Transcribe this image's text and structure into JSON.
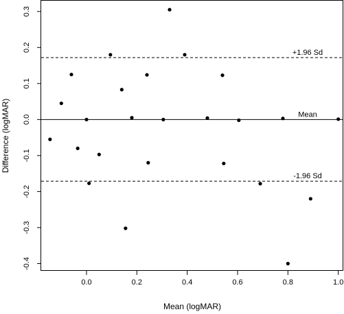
{
  "chart_data": {
    "type": "scatter",
    "title": "",
    "xlabel": "Mean (logMAR)",
    "ylabel": "Difference (logMAR)",
    "xlim": [
      -0.18,
      1.02
    ],
    "ylim": [
      -0.42,
      0.33
    ],
    "x_ticks": [
      0.0,
      0.2,
      0.4,
      0.6,
      0.8,
      1.0
    ],
    "x_tick_labels": [
      "0.0",
      "0.2",
      "0.4",
      "0.6",
      "0.8",
      "1.0"
    ],
    "y_ticks": [
      -0.4,
      -0.3,
      -0.2,
      -0.1,
      0.0,
      0.1,
      0.2,
      0.3
    ],
    "y_tick_labels": [
      "-0.4",
      "-0.3",
      "-0.2",
      "-0.1",
      "0.0",
      "0.1",
      "0.2",
      "0.3"
    ],
    "grid": false,
    "reference_lines": [
      {
        "label": "+1.96 Sd",
        "y": 0.172,
        "style": "dashed"
      },
      {
        "label": "Mean",
        "y": 0.0,
        "style": "solid"
      },
      {
        "label": "-1.96 Sd",
        "y": -0.171,
        "style": "dashed"
      }
    ],
    "points": [
      {
        "x": -0.145,
        "y": -0.055
      },
      {
        "x": -0.1,
        "y": 0.045
      },
      {
        "x": -0.06,
        "y": 0.125
      },
      {
        "x": -0.035,
        "y": -0.08
      },
      {
        "x": 0.0,
        "y": 0.0
      },
      {
        "x": 0.01,
        "y": -0.177
      },
      {
        "x": 0.05,
        "y": -0.097
      },
      {
        "x": 0.095,
        "y": 0.18
      },
      {
        "x": 0.14,
        "y": 0.083
      },
      {
        "x": 0.155,
        "y": -0.302
      },
      {
        "x": 0.18,
        "y": 0.005
      },
      {
        "x": 0.24,
        "y": 0.124
      },
      {
        "x": 0.245,
        "y": -0.12
      },
      {
        "x": 0.305,
        "y": 0.0
      },
      {
        "x": 0.33,
        "y": 0.305
      },
      {
        "x": 0.39,
        "y": 0.18
      },
      {
        "x": 0.48,
        "y": 0.004
      },
      {
        "x": 0.54,
        "y": 0.123
      },
      {
        "x": 0.545,
        "y": -0.122
      },
      {
        "x": 0.605,
        "y": -0.002
      },
      {
        "x": 0.69,
        "y": -0.178
      },
      {
        "x": 0.78,
        "y": 0.003
      },
      {
        "x": 0.8,
        "y": -0.4
      },
      {
        "x": 0.89,
        "y": -0.22
      },
      {
        "x": 1.0,
        "y": 0.001
      }
    ]
  }
}
